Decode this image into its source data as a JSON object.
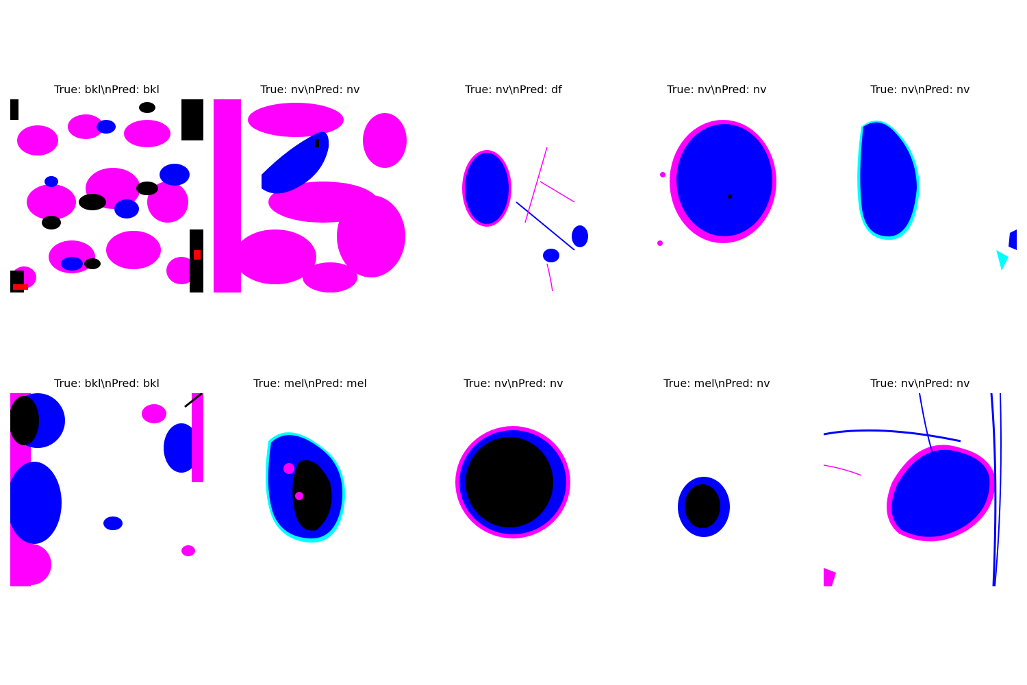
{
  "figure": {
    "panels": [
      {
        "title": "True: bkl\\nPred: bkl",
        "true_label": "bkl",
        "pred_label": "bkl"
      },
      {
        "title": "True: nv\\nPred: nv",
        "true_label": "nv",
        "pred_label": "nv"
      },
      {
        "title": "True: nv\\nPred: df",
        "true_label": "nv",
        "pred_label": "df"
      },
      {
        "title": "True: nv\\nPred: nv",
        "true_label": "nv",
        "pred_label": "nv"
      },
      {
        "title": "True: nv\\nPred: nv",
        "true_label": "nv",
        "pred_label": "nv"
      },
      {
        "title": "True: bkl\\nPred: bkl",
        "true_label": "bkl",
        "pred_label": "bkl"
      },
      {
        "title": "True: mel\\nPred: mel",
        "true_label": "mel",
        "pred_label": "mel"
      },
      {
        "title": "True: nv\\nPred: nv",
        "true_label": "nv",
        "pred_label": "nv"
      },
      {
        "title": "True: mel\\nPred: nv",
        "true_label": "mel",
        "pred_label": "nv"
      },
      {
        "title": "True: nv\\nPred: nv",
        "true_label": "nv",
        "pred_label": "nv"
      }
    ]
  },
  "colors": {
    "magenta": "#ff00ff",
    "blue": "#0000ff",
    "black": "#000000",
    "cyan": "#00ffff",
    "red": "#ff0000",
    "white": "#ffffff"
  }
}
